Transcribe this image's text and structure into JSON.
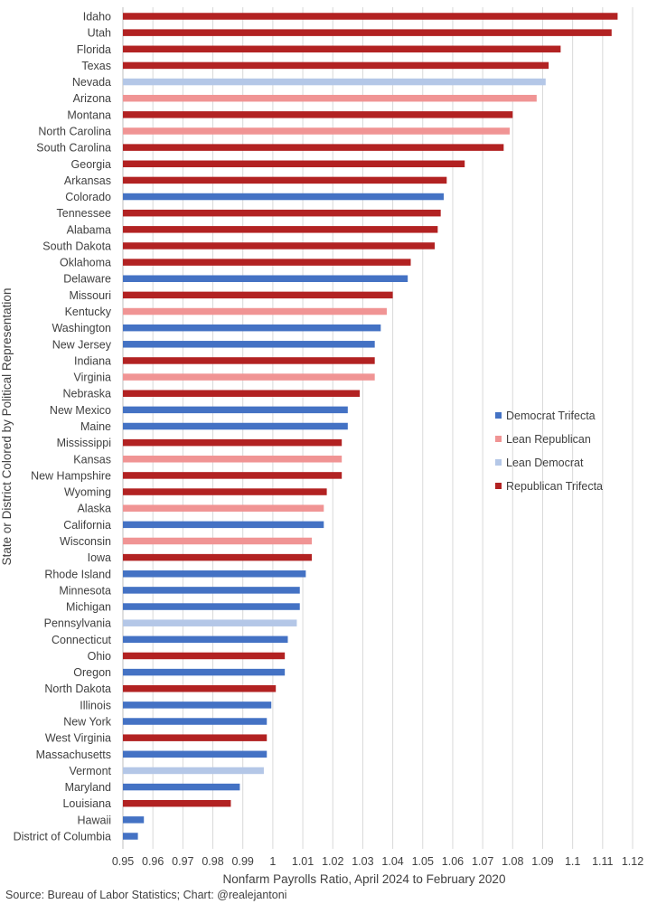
{
  "chart_data": {
    "type": "bar",
    "orientation": "horizontal",
    "xlabel": "Nonfarm Payrolls Ratio, April 2024 to February 2020",
    "ylabel": "State or District Colored by Political Representation",
    "xlim": [
      0.95,
      1.12
    ],
    "xticks": [
      "0.95",
      "0.96",
      "0.97",
      "0.98",
      "0.99",
      "1",
      "1.01",
      "1.02",
      "1.03",
      "1.04",
      "1.05",
      "1.06",
      "1.07",
      "1.08",
      "1.09",
      "1.1",
      "1.11",
      "1.12"
    ],
    "grid": "vertical",
    "legend_position": "right",
    "colors": {
      "Democrat Trifecta": "#4472c4",
      "Lean Republican": "#f09494",
      "Lean Democrat": "#b4c7e7",
      "Republican Trifecta": "#b22222"
    },
    "legend": [
      "Democrat Trifecta",
      "Lean Republican",
      "Lean Democrat",
      "Republican Trifecta"
    ],
    "categories": [
      "Idaho",
      "Utah",
      "Florida",
      "Texas",
      "Nevada",
      "Arizona",
      "Montana",
      "North Carolina",
      "South Carolina",
      "Georgia",
      "Arkansas",
      "Colorado",
      "Tennessee",
      "Alabama",
      "South Dakota",
      "Oklahoma",
      "Delaware",
      "Missouri",
      "Kentucky",
      "Washington",
      "New Jersey",
      "Indiana",
      "Virginia",
      "Nebraska",
      "New Mexico",
      "Maine",
      "Mississippi",
      "Kansas",
      "New Hampshire",
      "Wyoming",
      "Alaska",
      "California",
      "Wisconsin",
      "Iowa",
      "Rhode Island",
      "Minnesota",
      "Michigan",
      "Pennsylvania",
      "Connecticut",
      "Ohio",
      "Oregon",
      "North Dakota",
      "Illinois",
      "New York",
      "West Virginia",
      "Massachusetts",
      "Vermont",
      "Maryland",
      "Louisiana",
      "Hawaii",
      "District of Columbia"
    ],
    "values": [
      1.115,
      1.113,
      1.096,
      1.092,
      1.091,
      1.088,
      1.08,
      1.079,
      1.077,
      1.064,
      1.058,
      1.057,
      1.056,
      1.055,
      1.054,
      1.046,
      1.045,
      1.04,
      1.038,
      1.036,
      1.034,
      1.034,
      1.034,
      1.029,
      1.025,
      1.025,
      1.023,
      1.023,
      1.023,
      1.018,
      1.017,
      1.017,
      1.013,
      1.013,
      1.011,
      1.009,
      1.009,
      1.008,
      1.005,
      1.004,
      1.004,
      1.001,
      0.9995,
      0.998,
      0.998,
      0.998,
      0.997,
      0.989,
      0.986,
      0.957,
      0.955
    ],
    "groups": [
      "Republican Trifecta",
      "Republican Trifecta",
      "Republican Trifecta",
      "Republican Trifecta",
      "Lean Democrat",
      "Lean Republican",
      "Republican Trifecta",
      "Lean Republican",
      "Republican Trifecta",
      "Republican Trifecta",
      "Republican Trifecta",
      "Democrat Trifecta",
      "Republican Trifecta",
      "Republican Trifecta",
      "Republican Trifecta",
      "Republican Trifecta",
      "Democrat Trifecta",
      "Republican Trifecta",
      "Lean Republican",
      "Democrat Trifecta",
      "Democrat Trifecta",
      "Republican Trifecta",
      "Lean Republican",
      "Republican Trifecta",
      "Democrat Trifecta",
      "Democrat Trifecta",
      "Republican Trifecta",
      "Lean Republican",
      "Republican Trifecta",
      "Republican Trifecta",
      "Lean Republican",
      "Democrat Trifecta",
      "Lean Republican",
      "Republican Trifecta",
      "Democrat Trifecta",
      "Democrat Trifecta",
      "Democrat Trifecta",
      "Lean Democrat",
      "Democrat Trifecta",
      "Republican Trifecta",
      "Democrat Trifecta",
      "Republican Trifecta",
      "Democrat Trifecta",
      "Democrat Trifecta",
      "Republican Trifecta",
      "Democrat Trifecta",
      "Lean Democrat",
      "Democrat Trifecta",
      "Republican Trifecta",
      "Democrat Trifecta",
      "Democrat Trifecta"
    ]
  },
  "source_note": "Source: Bureau of Labor Statistics; Chart: @realejantoni"
}
